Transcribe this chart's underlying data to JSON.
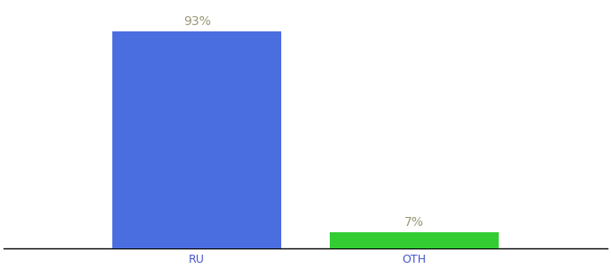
{
  "categories": [
    "RU",
    "OTH"
  ],
  "values": [
    93,
    7
  ],
  "bar_colors": [
    "#4a6ee0",
    "#33cc33"
  ],
  "label_texts": [
    "93%",
    "7%"
  ],
  "background_color": "#ffffff",
  "text_color": "#999977",
  "tick_color": "#4455cc",
  "ylim": [
    0,
    105
  ],
  "xlim": [
    0,
    1
  ],
  "x_positions": [
    0.32,
    0.68
  ],
  "bar_width": 0.28,
  "label_fontsize": 10,
  "tick_fontsize": 9
}
